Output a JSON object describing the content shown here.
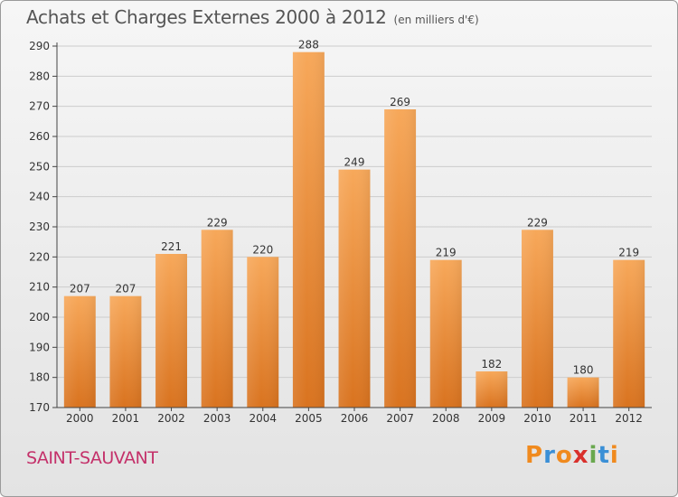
{
  "title": "Achats et Charges Externes 2000 à 2012",
  "subtitle": "(en milliers d'€)",
  "city": "SAINT-SAUVANT",
  "logo": {
    "letters": [
      "P",
      "r",
      "o",
      "x",
      "i",
      "t",
      "i"
    ],
    "colors": [
      "#f08a1e",
      "#3a8fd6",
      "#f08a1e",
      "#d9302c",
      "#6aa84f",
      "#3a8fd6",
      "#f08a1e"
    ]
  },
  "colors": {
    "bar_top": "#f7a85a",
    "bar_bottom": "#d9731f",
    "grid": "#cccccc",
    "axis": "#444444"
  },
  "chart_data": {
    "type": "bar",
    "categories": [
      "2000",
      "2001",
      "2002",
      "2003",
      "2004",
      "2005",
      "2006",
      "2007",
      "2008",
      "2009",
      "2010",
      "2011",
      "2012"
    ],
    "values": [
      207,
      207,
      221,
      229,
      220,
      288,
      249,
      269,
      219,
      182,
      229,
      180,
      219
    ],
    "data_labels": [
      "207",
      "207",
      "221",
      "229",
      "220",
      "288",
      "249",
      "269",
      "219",
      "182",
      "229",
      "180",
      "219"
    ],
    "ylim": [
      170,
      290
    ],
    "yticks": [
      170,
      180,
      190,
      200,
      210,
      220,
      230,
      240,
      250,
      260,
      270,
      280,
      290
    ],
    "ytick_labels": [
      "170",
      "180",
      "190",
      "200",
      "210",
      "220",
      "230",
      "240",
      "250",
      "260",
      "270",
      "280",
      "290"
    ],
    "grid": true
  }
}
